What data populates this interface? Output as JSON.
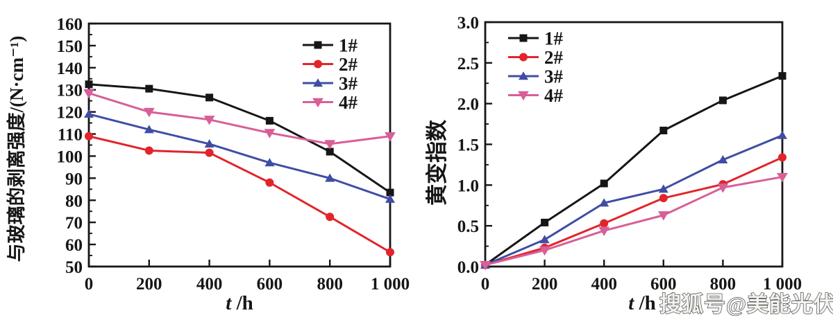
{
  "watermark": {
    "text": "搜狐号@美能光伏"
  },
  "colors": {
    "black": "#161616",
    "red": "#e2242b",
    "blue": "#3f4da4",
    "pink": "#d85f97",
    "axis": "#161616",
    "background": "#ffffff"
  },
  "chart_data": [
    {
      "type": "line",
      "title": "",
      "name": "peel-strength-chart",
      "xlabel_italic": "t",
      "xlabel_unit": " /h",
      "ylabel": "与玻璃的剥离强度/(N·cm⁻¹)",
      "xlim": [
        0,
        1000
      ],
      "ylim": [
        50,
        160
      ],
      "x": [
        0,
        200,
        400,
        600,
        800,
        1000
      ],
      "xtick_values": [
        0,
        200,
        400,
        600,
        800,
        1000
      ],
      "xtick_labels": [
        "0",
        "200",
        "400",
        "600",
        "800",
        "1 000"
      ],
      "ytick_values": [
        50,
        60,
        70,
        80,
        90,
        100,
        110,
        120,
        130,
        140,
        150,
        160
      ],
      "ytick_labels": [
        "50",
        "60",
        "70",
        "80",
        "90",
        "100",
        "110",
        "120",
        "130",
        "140",
        "150",
        "160"
      ],
      "y_minor_step": 5,
      "grid": false,
      "legend_position": "top-right",
      "series": [
        {
          "name": "1#",
          "color_key": "black",
          "marker": "square",
          "values": [
            132.5,
            130.5,
            126.5,
            116,
            102,
            83.5
          ]
        },
        {
          "name": "2#",
          "color_key": "red",
          "marker": "circle",
          "values": [
            109,
            102.5,
            101.5,
            88,
            72.5,
            56.5
          ]
        },
        {
          "name": "3#",
          "color_key": "blue",
          "marker": "triangle-up",
          "values": [
            119,
            112,
            105.5,
            97,
            90,
            80.5
          ]
        },
        {
          "name": "4#",
          "color_key": "pink",
          "marker": "triangle-down",
          "values": [
            128.5,
            120,
            116.5,
            110.5,
            105.5,
            109
          ]
        }
      ]
    },
    {
      "type": "line",
      "title": "",
      "name": "yellowing-index-chart",
      "xlabel_italic": "t",
      "xlabel_unit": " /h",
      "ylabel": "黄变指数",
      "xlim": [
        0,
        1000
      ],
      "ylim": [
        0,
        3
      ],
      "x": [
        0,
        200,
        400,
        600,
        800,
        1000
      ],
      "xtick_values": [
        0,
        200,
        400,
        600,
        800,
        1000
      ],
      "xtick_labels": [
        "0",
        "200",
        "400",
        "600",
        "800",
        "1 000"
      ],
      "ytick_values": [
        0,
        0.5,
        1,
        1.5,
        2,
        2.5,
        3
      ],
      "ytick_labels": [
        "0.0",
        "0.5",
        "1.0",
        "1.5",
        "2.0",
        "2.5",
        "3.0"
      ],
      "y_minor_step": 0.25,
      "grid": false,
      "legend_position": "top-left",
      "series": [
        {
          "name": "1#",
          "color_key": "black",
          "marker": "square",
          "values": [
            0.02,
            0.54,
            1.02,
            1.67,
            2.04,
            2.34
          ]
        },
        {
          "name": "2#",
          "color_key": "red",
          "marker": "circle",
          "values": [
            0.02,
            0.23,
            0.53,
            0.84,
            1.01,
            1.34
          ]
        },
        {
          "name": "3#",
          "color_key": "blue",
          "marker": "triangle-up",
          "values": [
            0.02,
            0.33,
            0.78,
            0.95,
            1.31,
            1.61
          ]
        },
        {
          "name": "4#",
          "color_key": "pink",
          "marker": "triangle-down",
          "values": [
            0.02,
            0.2,
            0.44,
            0.63,
            0.97,
            1.1
          ]
        }
      ]
    }
  ]
}
